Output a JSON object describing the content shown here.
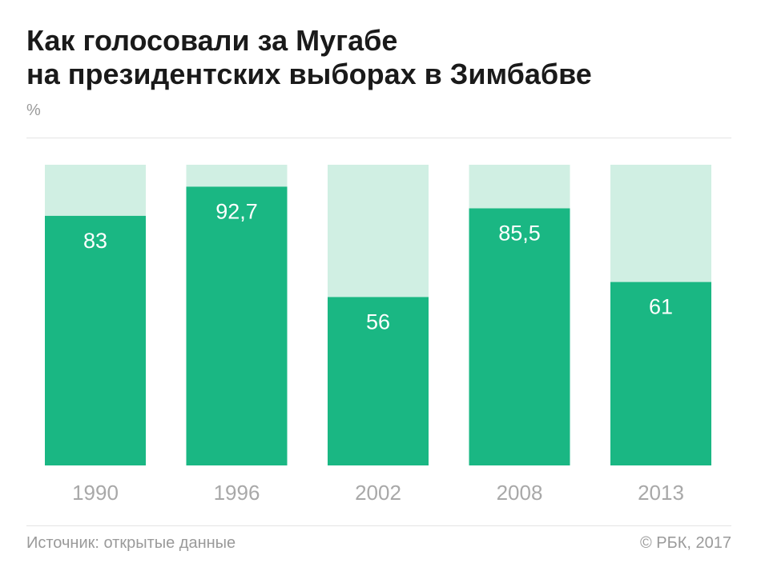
{
  "header": {
    "title_line1": "Как голосовали за Мугабе",
    "title_line2": "на президентских выборах в Зимбабве",
    "unit": "%"
  },
  "footer": {
    "source": "Источник: открытые данные",
    "copyright": "© РБК, 2017"
  },
  "colors": {
    "bar": "#1ab783",
    "background_bar": "#d0efe3",
    "value_label": "#ffffff",
    "tick_label": "#a8a8a8"
  },
  "chart_data": {
    "type": "bar",
    "title": "Как голосовали за Мугабе на президентских выборах в Зимбабве",
    "ylabel": "%",
    "xlabel": "",
    "ylim": [
      0,
      100
    ],
    "grid": false,
    "categories": [
      "1990",
      "1996",
      "2002",
      "2008",
      "2013"
    ],
    "values": [
      83,
      92.7,
      56,
      85.5,
      61
    ],
    "value_labels": [
      "83",
      "92,7",
      "56",
      "85,5",
      "61"
    ]
  }
}
